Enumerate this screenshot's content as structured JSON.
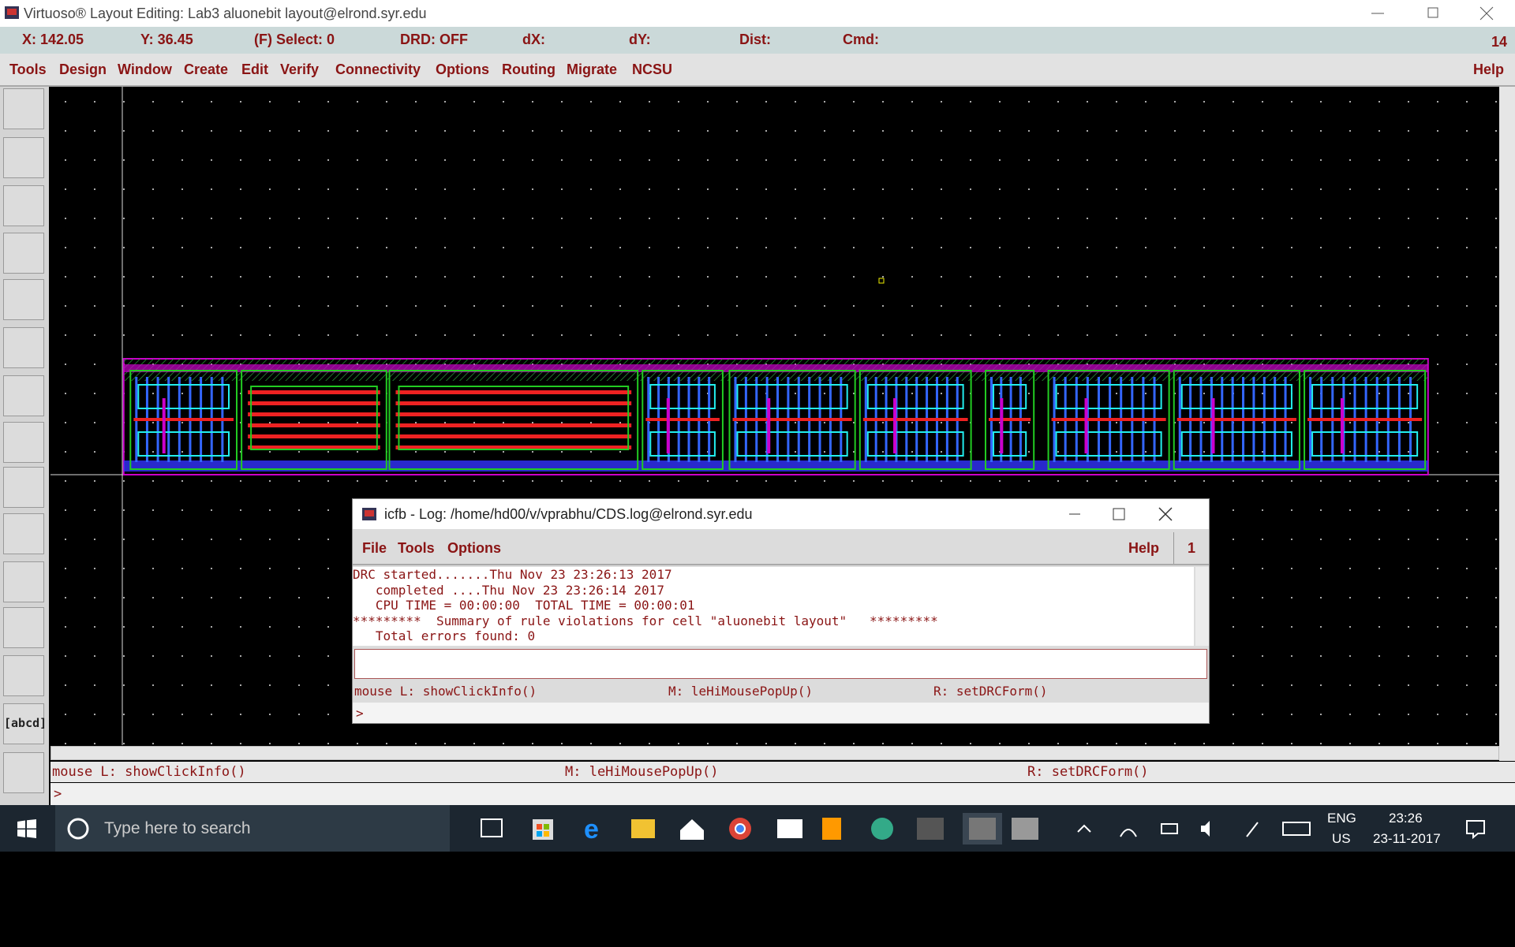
{
  "window": {
    "title": "Virtuoso® Layout Editing: Lab3 aluonebit layout@elrond.syr.edu"
  },
  "status_bar": {
    "x": "X: 142.05",
    "y": "Y: 36.45",
    "select": "(F) Select: 0",
    "drd": "DRD: OFF",
    "dx": "dX:",
    "dy": "dY:",
    "dist": "Dist:",
    "cmd": "Cmd:",
    "number": "14"
  },
  "menu": {
    "items": [
      "Tools",
      "Design",
      "Window",
      "Create",
      "Edit",
      "Verify",
      "Connectivity",
      "Options",
      "Routing",
      "Migrate",
      "NCSU"
    ],
    "help": "Help"
  },
  "toolbar": {
    "label_button": "[abcd]"
  },
  "bottom_bar": {
    "mouse_l": "mouse L: showClickInfo()",
    "mouse_m": "M: leHiMousePopUp()",
    "mouse_r": "R: setDRCForm()",
    "prompt": ">"
  },
  "log_window": {
    "title": "icfb - Log: /home/hd00/v/vprabhu/CDS.log@elrond.syr.edu",
    "menu": [
      "File",
      "Tools",
      "Options"
    ],
    "help": "Help",
    "number": "1",
    "lines": [
      "DRC started.......Thu Nov 23 23:26:13 2017",
      "   completed ....Thu Nov 23 23:26:14 2017",
      "   CPU TIME = 00:00:00  TOTAL TIME = 00:00:01",
      "*********  Summary of rule violations for cell \"aluonebit layout\"   *********",
      "   Total errors found: 0"
    ],
    "mouse_l": "mouse L: showClickInfo()",
    "mouse_m": "M: leHiMousePopUp()",
    "mouse_r": "R: setDRCForm()",
    "prompt": ">"
  },
  "taskbar": {
    "search": "Type here to search",
    "lang": "ENG",
    "region": "US",
    "time": "23:26",
    "date": "23-11-2017"
  }
}
